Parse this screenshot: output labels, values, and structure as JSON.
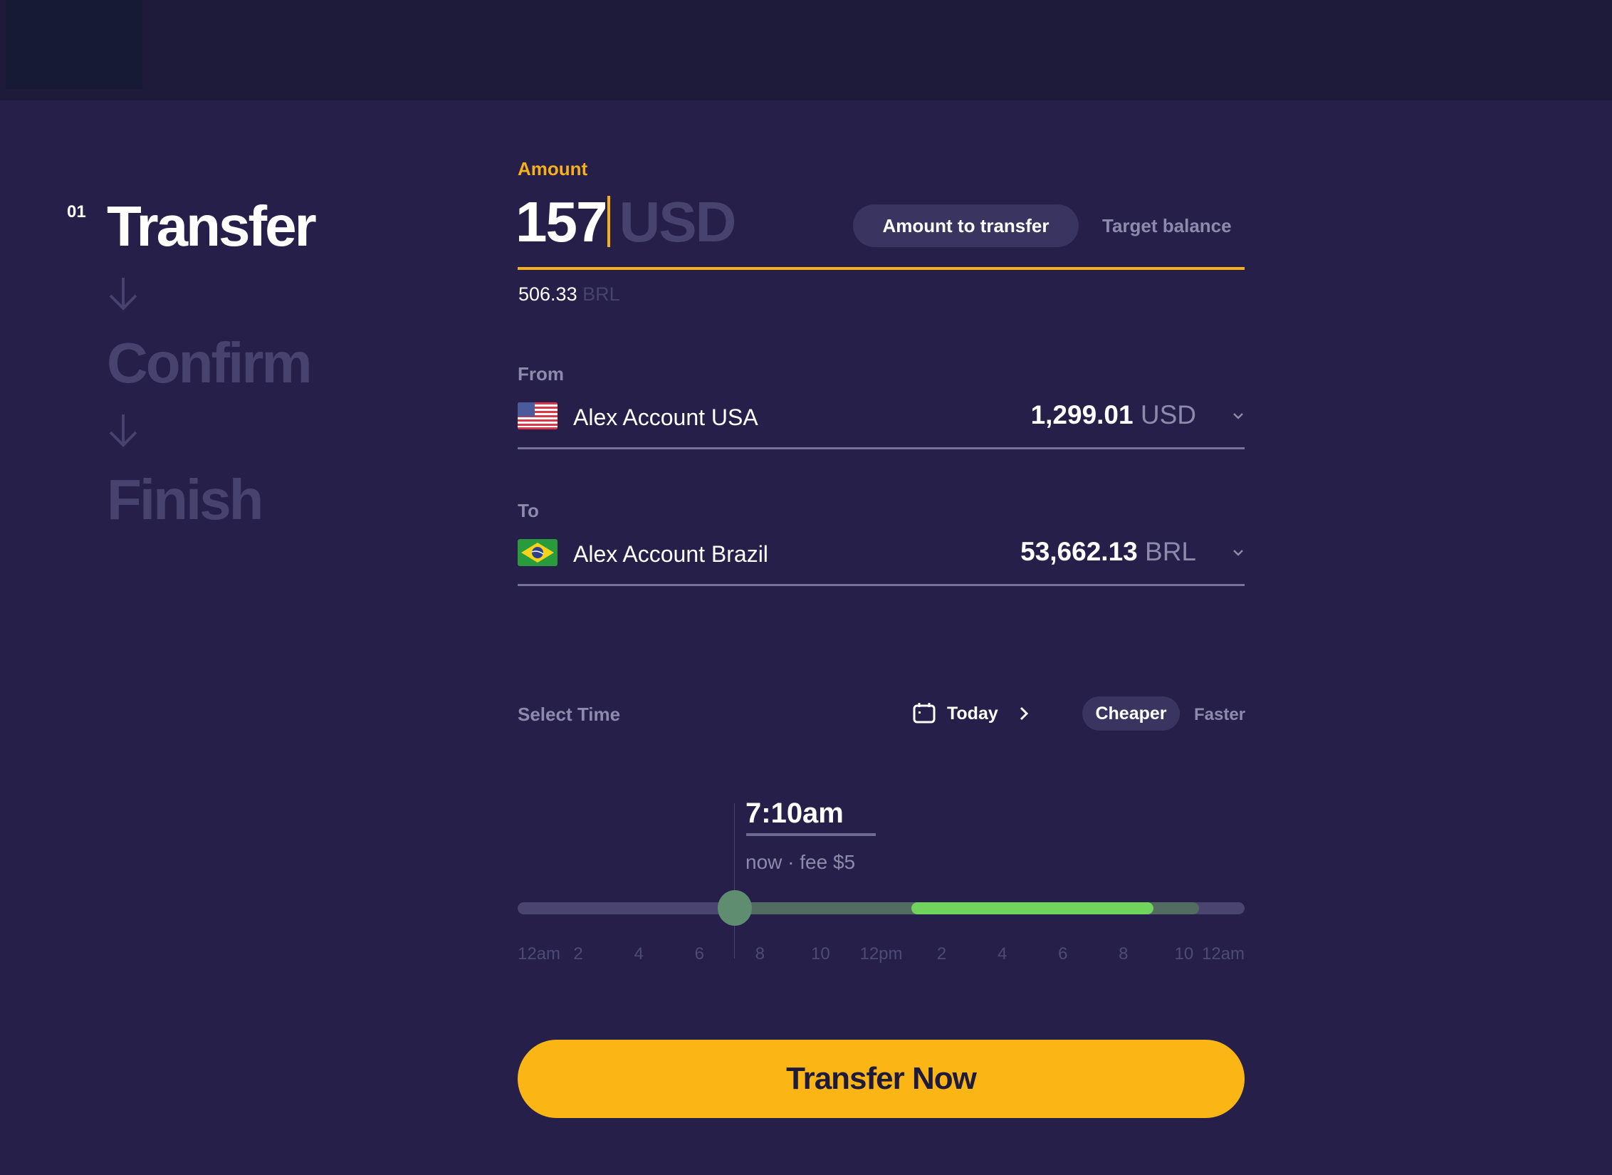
{
  "steps": [
    {
      "number": "01",
      "label": "Transfer",
      "active": true
    },
    {
      "label": "Confirm",
      "active": false
    },
    {
      "label": "Finish",
      "active": false
    }
  ],
  "amount": {
    "label": "Amount",
    "value": "157",
    "currency": "USD",
    "modes": [
      "Amount to transfer",
      "Target balance"
    ],
    "selected_mode": "Amount to transfer",
    "converted_value": "506.33",
    "converted_currency": "BRL"
  },
  "from": {
    "label": "From",
    "flag": "us-flag",
    "account": "Alex Account USA",
    "balance": "1,299.01",
    "currency": "USD"
  },
  "to": {
    "label": "To",
    "flag": "brazil-flag",
    "account": "Alex Account Brazil",
    "balance": "53,662.13",
    "currency": "BRL"
  },
  "time": {
    "label": "Select Time",
    "day": "Today",
    "options": [
      "Cheaper",
      "Faster"
    ],
    "selected_option": "Cheaper",
    "selected_time": "7:10am",
    "detail": "now · fee $5",
    "selected_hour": 7.17,
    "available_range_hours": [
      7.17,
      22.5
    ],
    "cheapest_range_hours": [
      13,
      21
    ],
    "ticks": [
      {
        "label": "12am",
        "hour": 0
      },
      {
        "label": "2",
        "hour": 2
      },
      {
        "label": "4",
        "hour": 4
      },
      {
        "label": "6",
        "hour": 6
      },
      {
        "label": "8",
        "hour": 8
      },
      {
        "label": "10",
        "hour": 10
      },
      {
        "label": "12pm",
        "hour": 12
      },
      {
        "label": "2",
        "hour": 14
      },
      {
        "label": "4",
        "hour": 16
      },
      {
        "label": "6",
        "hour": 18
      },
      {
        "label": "8",
        "hour": 20
      },
      {
        "label": "10",
        "hour": 22
      },
      {
        "label": "12am",
        "hour": 24
      }
    ]
  },
  "action": {
    "label": "Transfer Now"
  },
  "colors": {
    "accent": "#fbb616",
    "background": "#251f4a",
    "cheap": "#6fd35c",
    "available": "#526c62"
  }
}
